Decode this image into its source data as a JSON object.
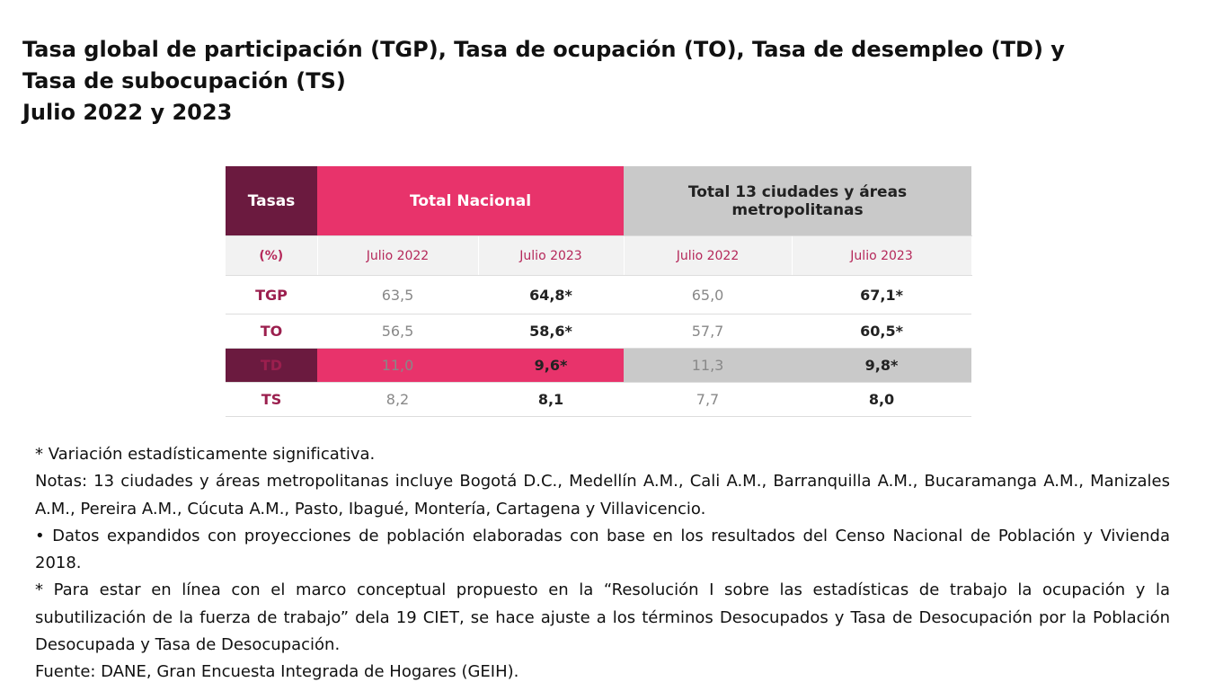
{
  "header": {
    "title": "Tasa global de participación (TGP), Tasa de ocupación (TO), Tasa de desempleo (TD) y Tasa de subocupación (TS)",
    "subtitle": "Julio 2022 y 2023"
  },
  "table": {
    "corner": [
      "Tasas",
      "(%)"
    ],
    "groups": [
      "Total Nacional",
      "Total 13 ciudades y áreas metropolitanas"
    ],
    "columns": [
      "Julio 2022",
      "Julio 2023",
      "Julio 2022",
      "Julio 2023"
    ],
    "rows": [
      [
        "TGP",
        "63,5",
        "64,8*",
        "65,0",
        "67,1*"
      ],
      [
        "TO",
        "56,5",
        "58,6*",
        "57,7",
        "60,5*"
      ],
      [
        "TD",
        "11,0",
        "9,6*",
        "11,3",
        "9,8*"
      ],
      [
        "TS",
        "8,2",
        "8,1",
        "7,7",
        "8,0"
      ]
    ]
  },
  "notes": [
    "* Variación estadísticamente significativa.",
    "Notas: 13 ciudades y áreas metropolitanas incluye Bogotá D.C., Medellín A.M., Cali A.M., Barranquilla A.M., Bucaramanga A.M., Manizales A.M., Pereira A.M., Cúcuta A.M., Pasto, Ibagué, Montería, Cartagena y Villavicencio.",
    "• Datos expandidos con proyecciones de población elaboradas con base en los resultados del Censo Nacional de Población y Vivienda 2018.",
    "* Para estar en línea con el marco conceptual propuesto en la “Resolución I sobre las estadísticas de trabajo la ocupación y la subutilización de la fuerza de trabajo” dela 19 CIET, se hace ajuste a los términos Desocupados y Tasa de Desocupación por la Población Desocupada y Tasa de Desocupación.",
    "Fuente: DANE, Gran Encuesta Integrada de Hogares (GEIH)."
  ]
}
